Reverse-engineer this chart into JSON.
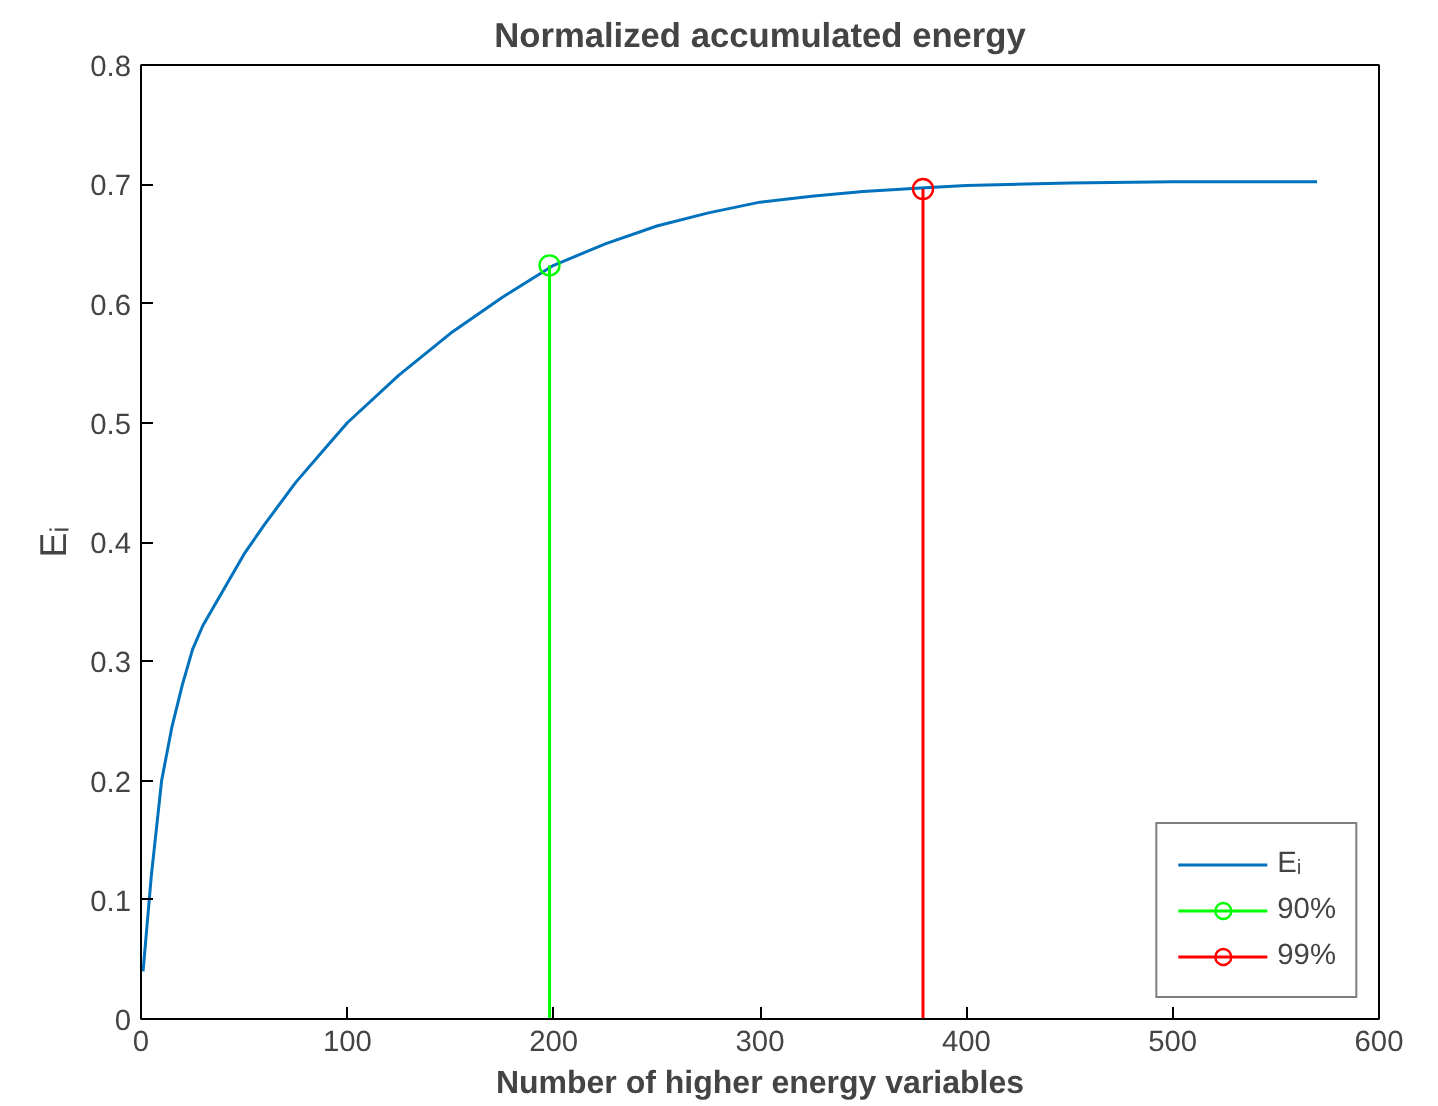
{
  "chart_data": {
    "type": "line",
    "title": "Normalized accumulated energy",
    "xlabel": "Number of higher energy variables",
    "ylabel": "Eᵢ",
    "xlim": [
      0,
      600
    ],
    "xticks": [
      0,
      100,
      200,
      300,
      400,
      500,
      600
    ],
    "ylim": [
      0,
      0.8
    ],
    "yticks": [
      0,
      0.1,
      0.2,
      0.3,
      0.4,
      0.5,
      0.6,
      0.7,
      0.8
    ],
    "grid": false,
    "legend": "bottom right",
    "series": [
      {
        "name": "Eᵢ",
        "color": "#0072bd",
        "marker": "none",
        "x": [
          1,
          5,
          10,
          15,
          20,
          25,
          30,
          40,
          50,
          60,
          75,
          90,
          100,
          125,
          150,
          175,
          200,
          225,
          250,
          275,
          300,
          325,
          350,
          380,
          400,
          450,
          500,
          570
        ],
        "values": [
          0.04,
          0.12,
          0.2,
          0.245,
          0.28,
          0.31,
          0.33,
          0.36,
          0.39,
          0.415,
          0.45,
          0.48,
          0.5,
          0.54,
          0.575,
          0.605,
          0.632,
          0.65,
          0.665,
          0.676,
          0.685,
          0.69,
          0.694,
          0.697,
          0.699,
          0.701,
          0.702,
          0.702
        ]
      },
      {
        "name": "90%",
        "type": "lollipop",
        "color": "#00ff00",
        "marker": "circle",
        "x": [
          198
        ],
        "values": [
          0.632
        ]
      },
      {
        "name": "99%",
        "type": "lollipop",
        "color": "#ff0000",
        "marker": "circle",
        "x": [
          379
        ],
        "values": [
          0.696
        ]
      }
    ]
  }
}
